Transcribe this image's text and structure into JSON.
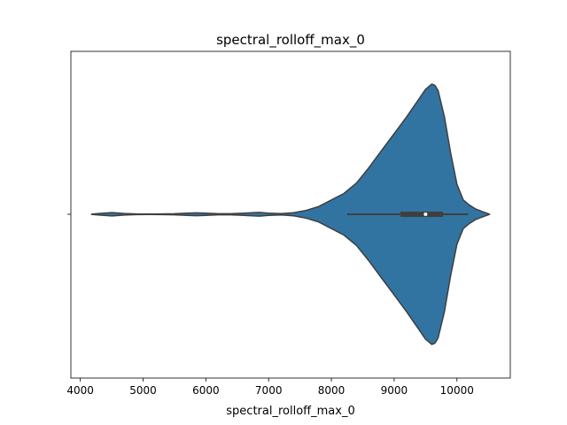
{
  "chart_data": {
    "type": "violin",
    "title": "spectral_rolloff_max_0",
    "xlabel": "spectral_rolloff_max_0",
    "ylabel": "",
    "orientation": "horizontal",
    "xlim": [
      3850,
      10850
    ],
    "x_ticks": [
      4000,
      5000,
      6000,
      7000,
      8000,
      9000,
      10000
    ],
    "x_tick_labels": [
      "4000",
      "5000",
      "6000",
      "7000",
      "8000",
      "9000",
      "10000"
    ],
    "grid": false,
    "color": "#3274a1",
    "edge_color": "#3f3f3f",
    "density": {
      "x": [
        4180,
        4300,
        4500,
        4700,
        4900,
        5100,
        5300,
        5500,
        5700,
        5850,
        6000,
        6200,
        6400,
        6600,
        6850,
        7000,
        7200,
        7400,
        7600,
        7800,
        8000,
        8200,
        8400,
        8600,
        8800,
        9000,
        9200,
        9400,
        9500,
        9600,
        9650,
        9700,
        9800,
        9900,
        10000,
        10100,
        10200,
        10300,
        10400,
        10520
      ],
      "half_width": [
        0.001,
        0.006,
        0.013,
        0.006,
        0.003,
        0.002,
        0.003,
        0.004,
        0.008,
        0.011,
        0.008,
        0.004,
        0.004,
        0.009,
        0.014,
        0.009,
        0.005,
        0.012,
        0.03,
        0.06,
        0.11,
        0.16,
        0.24,
        0.36,
        0.49,
        0.62,
        0.75,
        0.89,
        0.96,
        1.0,
        0.99,
        0.95,
        0.75,
        0.47,
        0.23,
        0.11,
        0.07,
        0.04,
        0.022,
        0.001
      ]
    },
    "box": {
      "whisker_low": 8250,
      "q1": 9100,
      "median": 9500,
      "q3": 9780,
      "whisker_high": 10180
    }
  }
}
